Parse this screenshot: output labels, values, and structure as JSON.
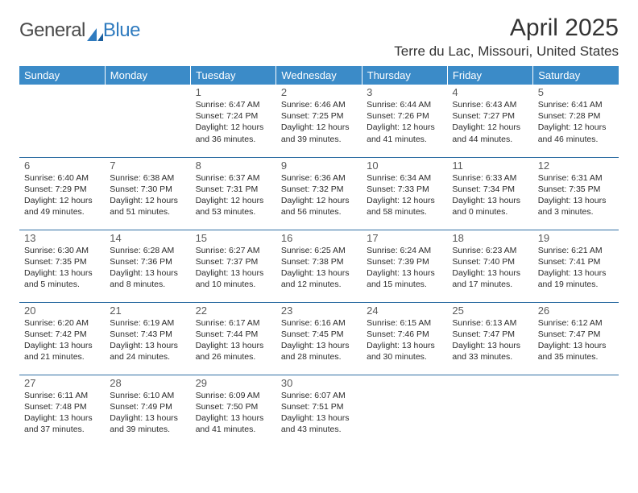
{
  "brand": {
    "word1": "General",
    "word2": "Blue"
  },
  "title": "April 2025",
  "location": "Terre du Lac, Missouri, United States",
  "colors": {
    "header_bg": "#3b8bc8",
    "header_text": "#ffffff",
    "rule": "#2f6ea3",
    "text": "#2b2b2b",
    "brand_gray": "#4a4a4a",
    "brand_blue": "#2f7bbf"
  },
  "day_headers": [
    "Sunday",
    "Monday",
    "Tuesday",
    "Wednesday",
    "Thursday",
    "Friday",
    "Saturday"
  ],
  "weeks": [
    [
      null,
      null,
      {
        "n": "1",
        "sr": "6:47 AM",
        "ss": "7:24 PM",
        "dl": "12 hours and 36 minutes."
      },
      {
        "n": "2",
        "sr": "6:46 AM",
        "ss": "7:25 PM",
        "dl": "12 hours and 39 minutes."
      },
      {
        "n": "3",
        "sr": "6:44 AM",
        "ss": "7:26 PM",
        "dl": "12 hours and 41 minutes."
      },
      {
        "n": "4",
        "sr": "6:43 AM",
        "ss": "7:27 PM",
        "dl": "12 hours and 44 minutes."
      },
      {
        "n": "5",
        "sr": "6:41 AM",
        "ss": "7:28 PM",
        "dl": "12 hours and 46 minutes."
      }
    ],
    [
      {
        "n": "6",
        "sr": "6:40 AM",
        "ss": "7:29 PM",
        "dl": "12 hours and 49 minutes."
      },
      {
        "n": "7",
        "sr": "6:38 AM",
        "ss": "7:30 PM",
        "dl": "12 hours and 51 minutes."
      },
      {
        "n": "8",
        "sr": "6:37 AM",
        "ss": "7:31 PM",
        "dl": "12 hours and 53 minutes."
      },
      {
        "n": "9",
        "sr": "6:36 AM",
        "ss": "7:32 PM",
        "dl": "12 hours and 56 minutes."
      },
      {
        "n": "10",
        "sr": "6:34 AM",
        "ss": "7:33 PM",
        "dl": "12 hours and 58 minutes."
      },
      {
        "n": "11",
        "sr": "6:33 AM",
        "ss": "7:34 PM",
        "dl": "13 hours and 0 minutes."
      },
      {
        "n": "12",
        "sr": "6:31 AM",
        "ss": "7:35 PM",
        "dl": "13 hours and 3 minutes."
      }
    ],
    [
      {
        "n": "13",
        "sr": "6:30 AM",
        "ss": "7:35 PM",
        "dl": "13 hours and 5 minutes."
      },
      {
        "n": "14",
        "sr": "6:28 AM",
        "ss": "7:36 PM",
        "dl": "13 hours and 8 minutes."
      },
      {
        "n": "15",
        "sr": "6:27 AM",
        "ss": "7:37 PM",
        "dl": "13 hours and 10 minutes."
      },
      {
        "n": "16",
        "sr": "6:25 AM",
        "ss": "7:38 PM",
        "dl": "13 hours and 12 minutes."
      },
      {
        "n": "17",
        "sr": "6:24 AM",
        "ss": "7:39 PM",
        "dl": "13 hours and 15 minutes."
      },
      {
        "n": "18",
        "sr": "6:23 AM",
        "ss": "7:40 PM",
        "dl": "13 hours and 17 minutes."
      },
      {
        "n": "19",
        "sr": "6:21 AM",
        "ss": "7:41 PM",
        "dl": "13 hours and 19 minutes."
      }
    ],
    [
      {
        "n": "20",
        "sr": "6:20 AM",
        "ss": "7:42 PM",
        "dl": "13 hours and 21 minutes."
      },
      {
        "n": "21",
        "sr": "6:19 AM",
        "ss": "7:43 PM",
        "dl": "13 hours and 24 minutes."
      },
      {
        "n": "22",
        "sr": "6:17 AM",
        "ss": "7:44 PM",
        "dl": "13 hours and 26 minutes."
      },
      {
        "n": "23",
        "sr": "6:16 AM",
        "ss": "7:45 PM",
        "dl": "13 hours and 28 minutes."
      },
      {
        "n": "24",
        "sr": "6:15 AM",
        "ss": "7:46 PM",
        "dl": "13 hours and 30 minutes."
      },
      {
        "n": "25",
        "sr": "6:13 AM",
        "ss": "7:47 PM",
        "dl": "13 hours and 33 minutes."
      },
      {
        "n": "26",
        "sr": "6:12 AM",
        "ss": "7:47 PM",
        "dl": "13 hours and 35 minutes."
      }
    ],
    [
      {
        "n": "27",
        "sr": "6:11 AM",
        "ss": "7:48 PM",
        "dl": "13 hours and 37 minutes."
      },
      {
        "n": "28",
        "sr": "6:10 AM",
        "ss": "7:49 PM",
        "dl": "13 hours and 39 minutes."
      },
      {
        "n": "29",
        "sr": "6:09 AM",
        "ss": "7:50 PM",
        "dl": "13 hours and 41 minutes."
      },
      {
        "n": "30",
        "sr": "6:07 AM",
        "ss": "7:51 PM",
        "dl": "13 hours and 43 minutes."
      },
      null,
      null,
      null
    ]
  ],
  "labels": {
    "sunrise": "Sunrise:",
    "sunset": "Sunset:",
    "daylight": "Daylight:"
  }
}
